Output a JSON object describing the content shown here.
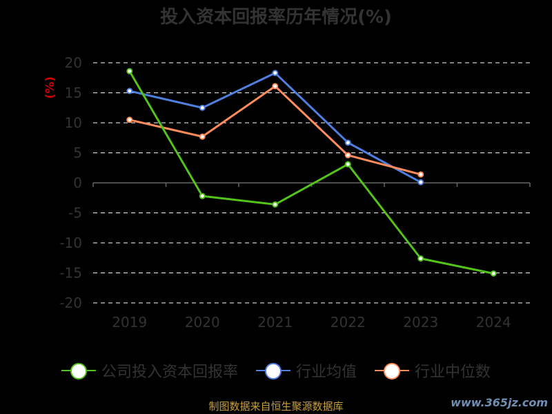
{
  "chart_data": {
    "type": "line",
    "title": "投入资本回报率历年情况(%)",
    "ylabel": "(%)",
    "xlabel": "",
    "categories": [
      "2019",
      "2020",
      "2021",
      "2022",
      "2023",
      "2024"
    ],
    "ylim": [
      -20,
      20
    ],
    "yticks": [
      20,
      15,
      10,
      5,
      0,
      -5,
      -10,
      -15,
      -20
    ],
    "grid": true,
    "legend_position": "bottom",
    "series": [
      {
        "name": "公司投入资本回报率",
        "color": "#52c41a",
        "values": [
          18.6,
          -2.2,
          -3.6,
          3.1,
          -12.6,
          -15.1
        ]
      },
      {
        "name": "行业均值",
        "color": "#4f7fe0",
        "values": [
          15.3,
          12.5,
          18.3,
          6.7,
          0.1,
          null
        ]
      },
      {
        "name": "行业中位数",
        "color": "#ff8c5a",
        "values": [
          10.5,
          7.7,
          16.1,
          4.6,
          1.4,
          null
        ]
      }
    ]
  },
  "footer": {
    "source": "制图数据来自恒生聚源数据库",
    "watermark": "www.365jz.com"
  }
}
